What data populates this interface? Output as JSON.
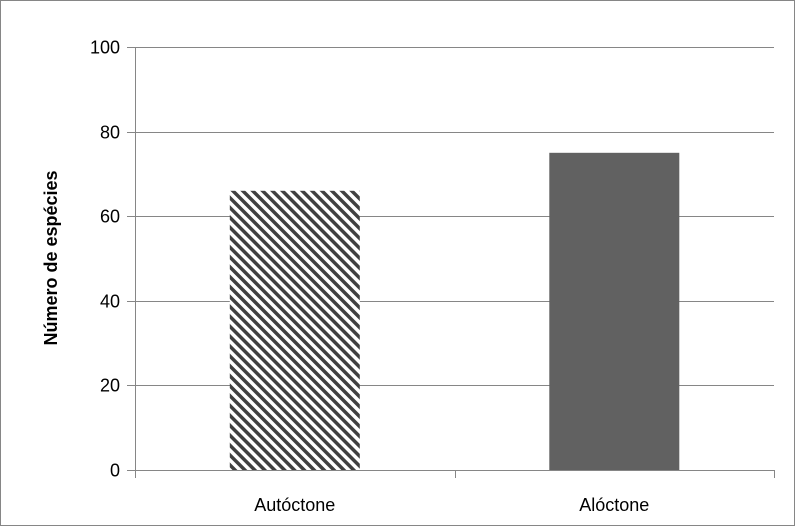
{
  "chart_data": {
    "type": "bar",
    "title": "",
    "xlabel": "",
    "ylabel": "Número de espécies",
    "categories": [
      "Autóctone",
      "Alóctone"
    ],
    "values": [
      66,
      75
    ],
    "ylim": [
      0,
      100
    ],
    "yticks": [
      "0",
      "20",
      "40",
      "60",
      "80",
      "100"
    ],
    "grid": true,
    "legend": "none",
    "bar_styles": [
      {
        "category": "Autóctone",
        "fill": "diagonal-hatch",
        "color": "#404040"
      },
      {
        "category": "Alóctone",
        "fill": "solid",
        "color": "#616161"
      }
    ],
    "colors": {
      "gridline": "#868686",
      "axis": "#868686",
      "frame": "#868686"
    }
  }
}
